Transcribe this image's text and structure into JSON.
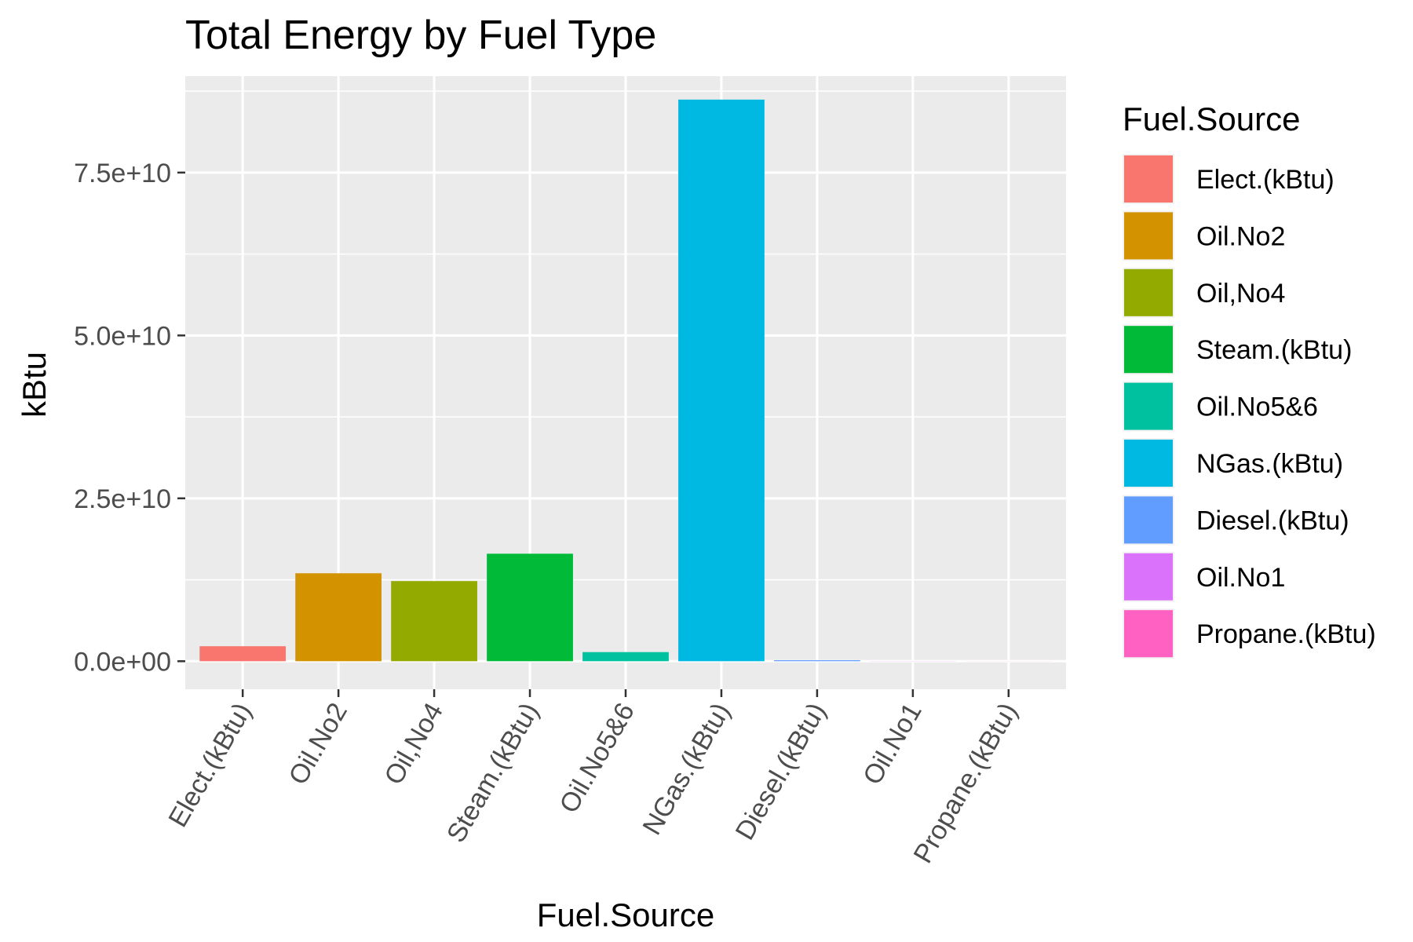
{
  "chart_data": {
    "type": "bar",
    "title": "Total Energy by Fuel Type",
    "xlabel": "Fuel.Source",
    "ylabel": "kBtu",
    "categories": [
      "Elect.(kBtu)",
      "Oil.No2",
      "Oil,No4",
      "Steam.(kBtu)",
      "Oil.No5&6",
      "NGas.(kBtu)",
      "Diesel.(kBtu)",
      "Oil.No1",
      "Propane.(kBtu)"
    ],
    "values": [
      2300000000.0,
      13500000000.0,
      12300000000.0,
      16500000000.0,
      1400000000.0,
      86200000000.0,
      150000000.0,
      20000000.0,
      10000000.0
    ],
    "colors": [
      "#F8766D",
      "#D39200",
      "#93AA00",
      "#00BA38",
      "#00C19F",
      "#00B9E3",
      "#619CFF",
      "#DB72FB",
      "#FF61C3"
    ],
    "ylim": [
      -4300000000.0,
      89800000000.0
    ],
    "yticks": [
      0,
      25000000000.0,
      50000000000.0,
      75000000000.0
    ],
    "ytick_labels": [
      "0.0e+00",
      "2.5e+10",
      "5.0e+10",
      "7.5e+10"
    ],
    "grid": true,
    "panel_background": "#EBEBEB",
    "legend": {
      "title": "Fuel.Source",
      "placement": "right"
    }
  }
}
